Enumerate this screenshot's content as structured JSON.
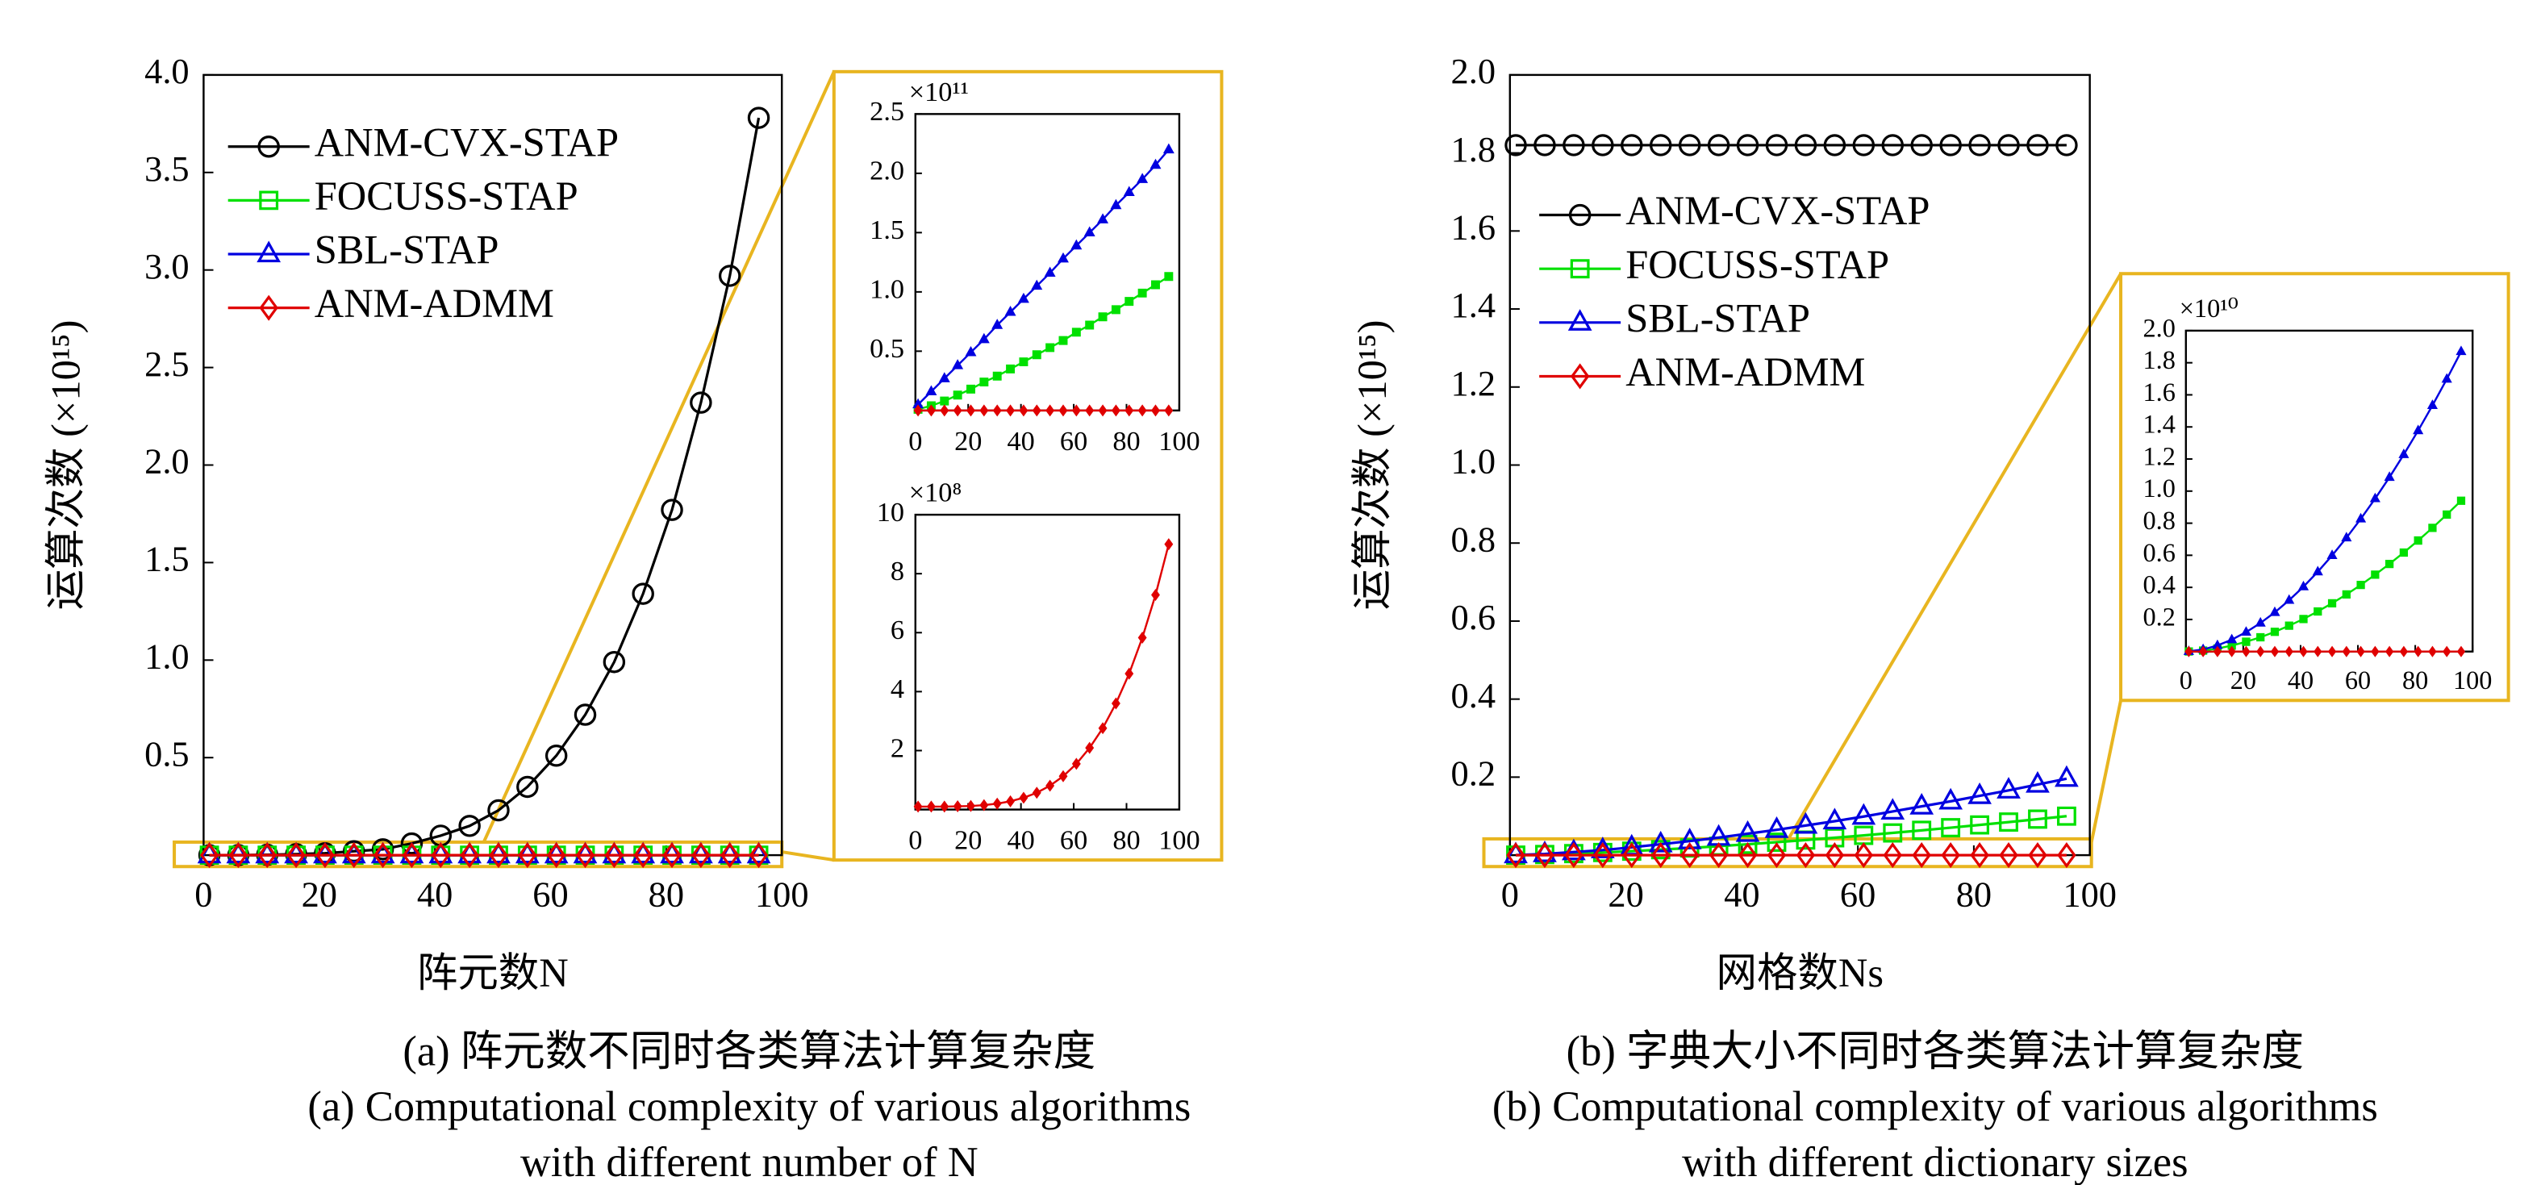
{
  "chart_data": [
    {
      "type": "line",
      "y_label": "运算次数 (×10¹⁵)",
      "x_label": "阵元数N",
      "caption": [
        "(a) 阵元数不同时各类算法计算复杂度",
        "(a) Computational complexity of various algorithms",
        "with different number of N"
      ],
      "x": [
        1,
        6,
        11,
        16,
        21,
        26,
        31,
        36,
        41,
        46,
        51,
        56,
        61,
        66,
        71,
        76,
        81,
        86,
        91,
        96
      ],
      "xlim": [
        0,
        100
      ],
      "xticks": [
        0,
        20,
        40,
        60,
        80,
        100
      ],
      "ylim": [
        0,
        4
      ],
      "yticks": [
        0.5,
        {
          "value": 1,
          "label": "1.0"
        },
        1.5,
        {
          "value": 2,
          "label": "2.0"
        },
        2.5,
        {
          "value": 3,
          "label": "3.0"
        },
        3.5,
        {
          "value": 4,
          "label": "4.0"
        }
      ],
      "legend": "upper left",
      "marker_fill": false,
      "series": [
        {
          "name": "ANM-CVX-STAP",
          "color": "#000000",
          "marker": "circle",
          "values": [
            0,
            0.0005,
            0.002,
            0.005,
            0.01,
            0.02,
            0.03,
            0.06,
            0.1,
            0.15,
            0.23,
            0.35,
            0.51,
            0.72,
            0.99,
            1.34,
            1.77,
            2.32,
            2.97,
            3.78
          ]
        },
        {
          "name": "FOCUSS-STAP",
          "color": "#00e000",
          "marker": "square",
          "values": [
            0,
            0,
            0,
            0,
            0,
            0,
            0,
            0,
            0,
            0,
            0,
            0,
            0,
            0,
            0,
            0,
            0,
            0,
            0,
            0
          ]
        },
        {
          "name": "SBL-STAP",
          "color": "#0000e0",
          "marker": "triangle",
          "values": [
            0,
            0,
            0,
            0,
            0,
            0,
            0,
            0,
            0,
            0,
            0,
            0,
            0,
            0,
            0,
            0,
            0,
            0,
            0,
            0
          ]
        },
        {
          "name": "ANM-ADMM",
          "color": "#e00000",
          "marker": "diamond",
          "values": [
            0,
            0,
            0,
            0,
            0,
            0,
            0,
            0,
            0,
            0,
            0,
            0,
            0,
            0,
            0,
            0,
            0,
            0,
            0,
            0
          ]
        }
      ]
    },
    {
      "type": "line",
      "exponent_label": "×10¹¹",
      "x": [
        1,
        6,
        11,
        16,
        21,
        26,
        31,
        36,
        41,
        46,
        51,
        56,
        61,
        66,
        71,
        76,
        81,
        86,
        91,
        96
      ],
      "xlim": [
        0,
        100
      ],
      "xticks": [
        0,
        20,
        40,
        60,
        80,
        100
      ],
      "ylim": [
        0,
        2.5
      ],
      "yticks": [
        0.5,
        {
          "value": 1,
          "label": "1.0"
        },
        1.5,
        {
          "value": 2,
          "label": "2.0"
        },
        2.5
      ],
      "marker_fill": true,
      "series": [
        {
          "color": "#00e000",
          "marker": "square",
          "values": [
            0.01,
            0.04,
            0.08,
            0.13,
            0.18,
            0.24,
            0.29,
            0.35,
            0.41,
            0.47,
            0.53,
            0.59,
            0.66,
            0.72,
            0.79,
            0.85,
            0.92,
            0.99,
            1.06,
            1.13
          ]
        },
        {
          "color": "#0000e0",
          "marker": "triangle",
          "values": [
            0.05,
            0.16,
            0.27,
            0.38,
            0.49,
            0.6,
            0.72,
            0.83,
            0.94,
            1.05,
            1.16,
            1.28,
            1.39,
            1.5,
            1.61,
            1.73,
            1.84,
            1.95,
            2.07,
            2.2
          ]
        },
        {
          "color": "#e00000",
          "marker": "diamond",
          "values": [
            0,
            0,
            0,
            0,
            0,
            0,
            0,
            0,
            0,
            0,
            0,
            0,
            0,
            0,
            0,
            0,
            0,
            0,
            0,
            0
          ]
        }
      ]
    },
    {
      "type": "line",
      "exponent_label": "×10⁸",
      "x": [
        1,
        6,
        11,
        16,
        21,
        26,
        31,
        36,
        41,
        46,
        51,
        56,
        61,
        66,
        71,
        76,
        81,
        86,
        91,
        96
      ],
      "xlim": [
        0,
        100
      ],
      "xticks": [
        0,
        20,
        40,
        60,
        80,
        100
      ],
      "ylim": [
        0,
        10
      ],
      "yticks": [
        2,
        4,
        6,
        8,
        10
      ],
      "marker_fill": true,
      "series": [
        {
          "color": "#e00000",
          "marker": "diamond",
          "values": [
            0.1,
            0.1,
            0.1,
            0.11,
            0.12,
            0.15,
            0.2,
            0.28,
            0.4,
            0.57,
            0.81,
            1.13,
            1.55,
            2.09,
            2.76,
            3.6,
            4.61,
            5.83,
            7.28,
            9.0
          ]
        }
      ]
    },
    {
      "type": "line",
      "y_label": "运算次数 (×10¹⁵)",
      "x_label": "网格数Ns",
      "caption": [
        "(b) 字典大小不同时各类算法计算复杂度",
        "(b) Computational complexity of various algorithms",
        "with different dictionary sizes"
      ],
      "x": [
        1,
        6,
        11,
        16,
        21,
        26,
        31,
        36,
        41,
        46,
        51,
        56,
        61,
        66,
        71,
        76,
        81,
        86,
        91,
        96
      ],
      "xlim": [
        0,
        100
      ],
      "xticks": [
        0,
        20,
        40,
        60,
        80,
        100
      ],
      "ylim": [
        0,
        2
      ],
      "yticks": [
        0.2,
        0.4,
        0.6,
        0.8,
        {
          "value": 1,
          "label": "1.0"
        },
        1.2,
        1.4,
        1.6,
        1.8,
        {
          "value": 2,
          "label": "2.0"
        }
      ],
      "legend": "center left",
      "marker_fill": false,
      "series": [
        {
          "name": "ANM-CVX-STAP",
          "color": "#000000",
          "marker": "circle",
          "values": [
            1.82,
            1.82,
            1.82,
            1.82,
            1.82,
            1.82,
            1.82,
            1.82,
            1.82,
            1.82,
            1.82,
            1.82,
            1.82,
            1.82,
            1.82,
            1.82,
            1.82,
            1.82,
            1.82,
            1.82
          ]
        },
        {
          "name": "FOCUSS-STAP",
          "color": "#00e000",
          "marker": "square",
          "values": [
            0.0001,
            0.0016,
            0.0039,
            0.0068,
            0.0102,
            0.0141,
            0.0184,
            0.023,
            0.0279,
            0.0332,
            0.0387,
            0.0446,
            0.0507,
            0.057,
            0.0636,
            0.0704,
            0.0775,
            0.0848,
            0.0923,
            0.1
          ]
        },
        {
          "name": "SBL-STAP",
          "color": "#0000e0",
          "marker": "triangle",
          "values": [
            0.0002,
            0.003,
            0.008,
            0.013,
            0.02,
            0.028,
            0.036,
            0.045,
            0.055,
            0.065,
            0.076,
            0.087,
            0.099,
            0.112,
            0.125,
            0.138,
            0.152,
            0.166,
            0.181,
            0.196
          ]
        },
        {
          "name": "ANM-ADMM",
          "color": "#e00000",
          "marker": "diamond",
          "values": [
            0,
            0,
            0,
            0,
            0,
            0,
            0,
            0,
            0,
            0,
            0,
            0,
            0,
            0,
            0,
            0,
            0,
            0,
            0,
            0
          ]
        }
      ]
    },
    {
      "type": "line",
      "exponent_label": "×10¹⁰",
      "x": [
        1,
        6,
        11,
        16,
        21,
        26,
        31,
        36,
        41,
        46,
        51,
        56,
        61,
        66,
        71,
        76,
        81,
        86,
        91,
        96
      ],
      "xlim": [
        0,
        100
      ],
      "xticks": [
        0,
        20,
        40,
        60,
        80,
        100
      ],
      "ylim": [
        0,
        2
      ],
      "yticks": [
        0.2,
        0.4,
        0.6,
        0.8,
        {
          "value": 1,
          "label": "1.0"
        },
        1.2,
        1.4,
        1.6,
        1.8,
        {
          "value": 2,
          "label": "2.0"
        }
      ],
      "marker_fill": true,
      "series": [
        {
          "color": "#00e000",
          "marker": "square",
          "values": [
            0.0003,
            0.006,
            0.019,
            0.037,
            0.061,
            0.089,
            0.123,
            0.161,
            0.203,
            0.25,
            0.301,
            0.356,
            0.415,
            0.479,
            0.546,
            0.617,
            0.692,
            0.771,
            0.854,
            0.94
          ]
        },
        {
          "color": "#0000e0",
          "marker": "triangle",
          "values": [
            0.001,
            0.013,
            0.038,
            0.074,
            0.121,
            0.178,
            0.244,
            0.32,
            0.404,
            0.497,
            0.599,
            0.709,
            0.827,
            0.953,
            1.086,
            1.228,
            1.377,
            1.534,
            1.698,
            1.87
          ]
        },
        {
          "color": "#e00000",
          "marker": "diamond",
          "values": [
            0,
            0,
            0,
            0,
            0,
            0,
            0,
            0,
            0,
            0,
            0,
            0,
            0,
            0,
            0,
            0,
            0,
            0,
            0,
            0
          ]
        }
      ]
    }
  ]
}
